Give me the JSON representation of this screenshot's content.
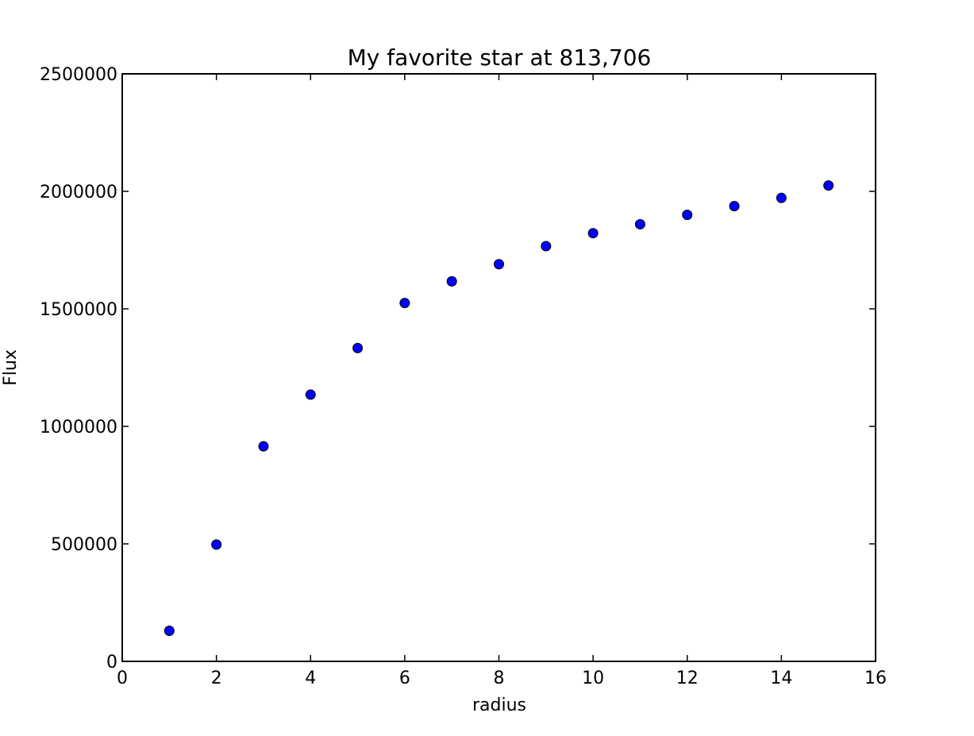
{
  "chart_data": {
    "type": "scatter",
    "title": "My favorite star at 813,706",
    "xlabel": "radius",
    "ylabel": "Flux",
    "xlim": [
      0,
      16
    ],
    "ylim": [
      0,
      2500000
    ],
    "xticks": [
      "0",
      "2",
      "4",
      "6",
      "8",
      "10",
      "12",
      "14",
      "16"
    ],
    "yticks": [
      "0",
      "500000",
      "1000000",
      "1500000",
      "2000000",
      "2500000"
    ],
    "grid": false,
    "legend": "none",
    "series": [
      {
        "color": "#0000ff",
        "marker": "circle",
        "x": [
          1,
          2,
          3,
          4,
          5,
          6,
          7,
          8,
          9,
          10,
          11,
          12,
          13,
          14,
          15
        ],
        "y": [
          130000,
          497000,
          915000,
          1135000,
          1333000,
          1525000,
          1617000,
          1690000,
          1767000,
          1822000,
          1860000,
          1900000,
          1937000,
          1972000,
          2025000
        ]
      }
    ]
  }
}
